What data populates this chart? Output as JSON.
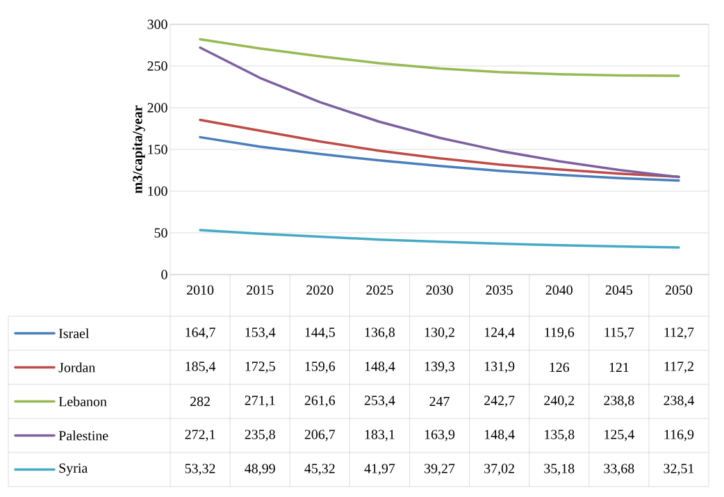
{
  "chart_data": {
    "type": "line",
    "ylabel": "m3/capita/year",
    "categories": [
      "2010",
      "2015",
      "2020",
      "2025",
      "2030",
      "2035",
      "2040",
      "2045",
      "2050"
    ],
    "ylim": [
      0,
      300
    ],
    "yticks": [
      0,
      50,
      100,
      150,
      200,
      250,
      300
    ],
    "grid": "y",
    "legend": "bottom",
    "series": [
      {
        "name": "Israel",
        "color": "#4a7ebb",
        "values": [
          164.7,
          153.4,
          144.5,
          136.8,
          130.2,
          124.4,
          119.6,
          115.7,
          112.7
        ],
        "value_labels": [
          "164,7",
          "153,4",
          "144,5",
          "136,8",
          "130,2",
          "124,4",
          "119,6",
          "115,7",
          "112,7"
        ]
      },
      {
        "name": "Jordan",
        "color": "#be4b48",
        "values": [
          185.4,
          172.5,
          159.6,
          148.4,
          139.3,
          131.9,
          126,
          121,
          117.2
        ],
        "value_labels": [
          "185,4",
          "172,5",
          "159,6",
          "148,4",
          "139,3",
          "131,9",
          "126",
          "121",
          "117,2"
        ]
      },
      {
        "name": "Lebanon",
        "color": "#98b954",
        "values": [
          282,
          271.1,
          261.6,
          253.4,
          247,
          242.7,
          240.2,
          238.8,
          238.4
        ],
        "value_labels": [
          "282",
          "271,1",
          "261,6",
          "253,4",
          "247",
          "242,7",
          "240,2",
          "238,8",
          "238,4"
        ]
      },
      {
        "name": "Palestine",
        "color": "#7d60a0",
        "values": [
          272.1,
          235.8,
          206.7,
          183.1,
          163.9,
          148.4,
          135.8,
          125.4,
          116.9
        ],
        "value_labels": [
          "272,1",
          "235,8",
          "206,7",
          "183,1",
          "163,9",
          "148,4",
          "135,8",
          "125,4",
          "116,9"
        ]
      },
      {
        "name": "Syria",
        "color": "#46aac5",
        "values": [
          53.32,
          48.99,
          45.32,
          41.97,
          39.27,
          37.02,
          35.18,
          33.68,
          32.51
        ],
        "value_labels": [
          "53,32",
          "48,99",
          "45,32",
          "41,97",
          "39,27",
          "37,02",
          "35,18",
          "33,68",
          "32,51"
        ]
      }
    ]
  }
}
